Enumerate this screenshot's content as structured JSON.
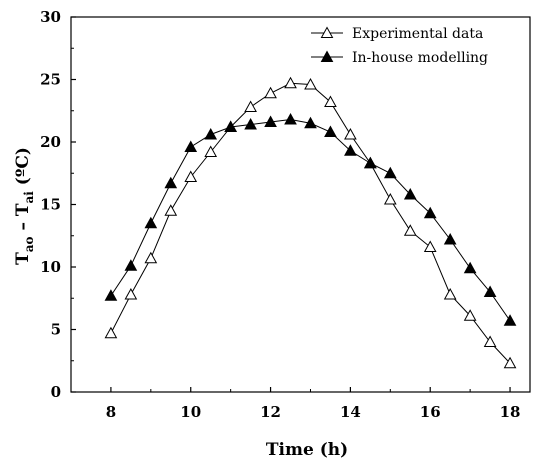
{
  "chart_data": {
    "type": "line",
    "title": "",
    "xlabel": "Time (h)",
    "ylabel": {
      "main": "T",
      "sub1": "ao",
      "mid": " – T",
      "sub2": "ai",
      "unit": " (ºC)"
    },
    "xlim": [
      7,
      18.5
    ],
    "ylim": [
      0,
      30
    ],
    "xticks": [
      8,
      10,
      12,
      14,
      16,
      18
    ],
    "yticks": [
      0,
      5,
      10,
      15,
      20,
      25,
      30
    ],
    "legend_position": "top-right",
    "series": [
      {
        "name": "Experimental data",
        "marker": "open-triangle",
        "x": [
          8,
          8.5,
          9,
          9.5,
          10,
          10.5,
          11,
          11.5,
          12,
          12.5,
          13,
          13.5,
          14,
          14.5,
          15,
          15.5,
          16,
          16.5,
          17,
          17.5,
          18
        ],
        "y": [
          4.7,
          7.8,
          10.7,
          14.5,
          17.2,
          19.2,
          21.2,
          22.8,
          23.9,
          24.7,
          24.6,
          23.2,
          20.6,
          18.3,
          15.4,
          12.9,
          11.6,
          7.8,
          6.1,
          4.0,
          2.3
        ]
      },
      {
        "name": "In-house modelling",
        "marker": "filled-triangle",
        "x": [
          8,
          8.5,
          9,
          9.5,
          10,
          10.5,
          11,
          11.5,
          12,
          12.5,
          13,
          13.5,
          14,
          14.5,
          15,
          15.5,
          16,
          16.5,
          17,
          17.5,
          18
        ],
        "y": [
          7.7,
          10.1,
          13.5,
          16.7,
          19.6,
          20.6,
          21.2,
          21.4,
          21.6,
          21.8,
          21.5,
          20.8,
          19.3,
          18.3,
          17.5,
          15.8,
          14.3,
          12.2,
          9.9,
          8.0,
          5.7
        ]
      }
    ]
  }
}
